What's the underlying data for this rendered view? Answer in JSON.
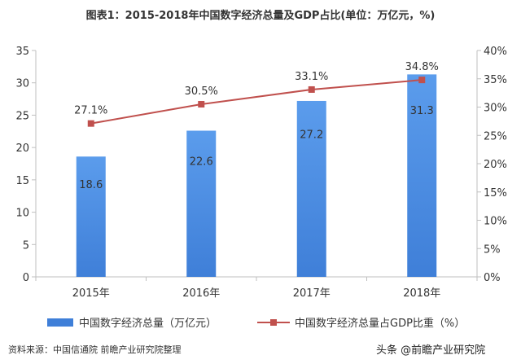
{
  "chart_data": {
    "type": "bar",
    "title": "图表1：2015-2018年中国数字经济总量及GDP占比(单位：万亿元，%)",
    "categories": [
      "2015年",
      "2016年",
      "2017年",
      "2018年"
    ],
    "series": [
      {
        "name": "中国数字经济总量（万亿元）",
        "type": "bar",
        "axis": "left",
        "values": [
          18.6,
          22.6,
          27.2,
          31.3
        ],
        "labels": [
          "18.6",
          "22.6",
          "27.2",
          "31.3"
        ]
      },
      {
        "name": "中国数字经济总量占GDP比重（%）",
        "type": "line",
        "axis": "right",
        "values": [
          27.1,
          30.5,
          33.1,
          34.8
        ],
        "labels": [
          "27.1%",
          "30.5%",
          "33.1%",
          "34.8%"
        ]
      }
    ],
    "y_left": {
      "range": [
        0,
        35
      ],
      "ticks": [
        "0",
        "5",
        "10",
        "15",
        "20",
        "25",
        "30",
        "35"
      ]
    },
    "y_right": {
      "range": [
        0,
        40
      ],
      "ticks": [
        "0%",
        "5%",
        "10%",
        "15%",
        "20%",
        "25%",
        "30%",
        "35%",
        "40%"
      ]
    },
    "grid": false,
    "legend_position": "bottom",
    "colors": {
      "bar": "#3f7fd8",
      "bar_light": "#5b9cec",
      "line": "#c0504d"
    }
  },
  "footer": {
    "source": "资料来源：中国信通院 前瞻产业研究院整理",
    "credit": "头条 @前瞻产业研究院"
  }
}
